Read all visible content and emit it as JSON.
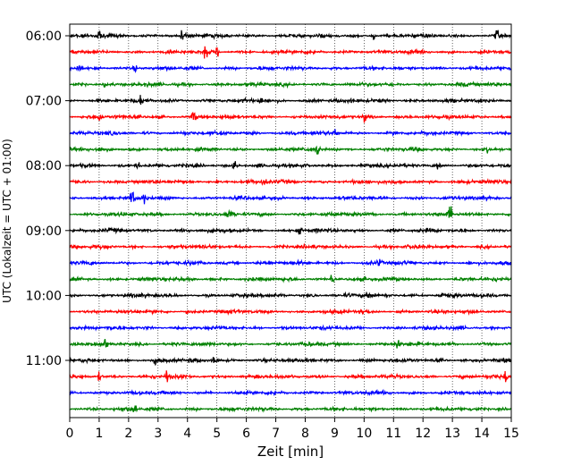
{
  "chart_data": {
    "type": "line",
    "title": "",
    "xlabel": "Zeit  [min]",
    "ylabel": "UTC (Lokalzeit = UTC + 01:00)",
    "xlim": [
      0,
      15
    ],
    "xticks": [
      "0",
      "1",
      "2",
      "3",
      "4",
      "5",
      "6",
      "7",
      "8",
      "9",
      "10",
      "11",
      "12",
      "13",
      "14",
      "15"
    ],
    "yticks": [
      "06:00",
      "07:00",
      "08:00",
      "09:00",
      "10:00",
      "11:00"
    ],
    "row_interval_minutes": 15,
    "row_start": "06:00",
    "rows": 24,
    "color_cycle": [
      "#000000",
      "#ff0000",
      "#0000ff",
      "#008000"
    ],
    "vertical_grid": "dotted",
    "events": [
      {
        "row": 0,
        "x": 1.0,
        "amp": 1.3
      },
      {
        "row": 0,
        "x": 3.8,
        "amp": 1.0
      },
      {
        "row": 0,
        "x": 10.3,
        "amp": 0.9
      },
      {
        "row": 0,
        "x": 14.5,
        "amp": 1.0
      },
      {
        "row": 1,
        "x": 4.6,
        "amp": 1.4
      },
      {
        "row": 1,
        "x": 5.0,
        "amp": 1.0
      },
      {
        "row": 2,
        "x": 0.3,
        "amp": 0.9
      },
      {
        "row": 2,
        "x": 2.2,
        "amp": 0.7
      },
      {
        "row": 3,
        "x": 1.2,
        "amp": 0.8
      },
      {
        "row": 4,
        "x": 2.4,
        "amp": 0.8
      },
      {
        "row": 4,
        "x": 6.5,
        "amp": 0.9
      },
      {
        "row": 5,
        "x": 1.0,
        "amp": 0.9
      },
      {
        "row": 5,
        "x": 4.2,
        "amp": 1.0
      },
      {
        "row": 5,
        "x": 10.0,
        "amp": 0.7
      },
      {
        "row": 6,
        "x": 9.0,
        "amp": 0.7
      },
      {
        "row": 7,
        "x": 8.4,
        "amp": 1.2
      },
      {
        "row": 7,
        "x": 14.2,
        "amp": 1.2
      },
      {
        "row": 8,
        "x": 2.3,
        "amp": 1.0
      },
      {
        "row": 8,
        "x": 5.6,
        "amp": 0.8
      },
      {
        "row": 8,
        "x": 12.5,
        "amp": 0.9
      },
      {
        "row": 9,
        "x": 6.6,
        "amp": 0.7
      },
      {
        "row": 10,
        "x": 2.1,
        "amp": 1.5
      },
      {
        "row": 10,
        "x": 2.5,
        "amp": 1.0
      },
      {
        "row": 11,
        "x": 5.4,
        "amp": 0.7
      },
      {
        "row": 11,
        "x": 12.9,
        "amp": 2.2
      },
      {
        "row": 12,
        "x": 7.8,
        "amp": 0.7
      },
      {
        "row": 14,
        "x": 10.5,
        "amp": 0.9
      },
      {
        "row": 15,
        "x": 8.9,
        "amp": 1.0
      },
      {
        "row": 16,
        "x": 10.1,
        "amp": 0.9
      },
      {
        "row": 16,
        "x": 12.6,
        "amp": 0.7
      },
      {
        "row": 17,
        "x": 4.0,
        "amp": 0.7
      },
      {
        "row": 19,
        "x": 1.2,
        "amp": 0.9
      },
      {
        "row": 19,
        "x": 11.1,
        "amp": 1.4
      },
      {
        "row": 20,
        "x": 4.9,
        "amp": 1.2
      },
      {
        "row": 20,
        "x": 2.9,
        "amp": 0.9
      },
      {
        "row": 21,
        "x": 1.0,
        "amp": 0.9
      },
      {
        "row": 21,
        "x": 3.3,
        "amp": 1.2
      },
      {
        "row": 21,
        "x": 14.8,
        "amp": 1.0
      },
      {
        "row": 23,
        "x": 2.2,
        "amp": 1.2
      }
    ]
  }
}
